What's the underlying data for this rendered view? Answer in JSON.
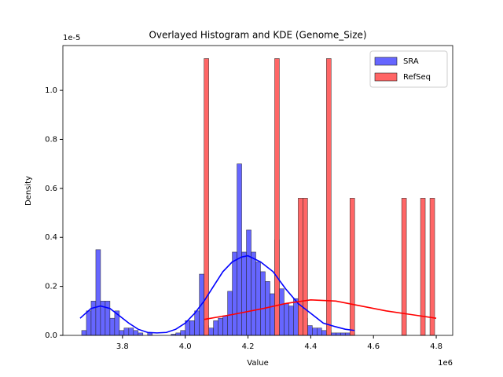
{
  "chart_data": {
    "type": "histogram",
    "title": "Overlayed Histogram and KDE (Genome_Size)",
    "x_label": "Value",
    "y_label": "Density",
    "x_offset_label": "1e6",
    "y_offset_label": "1e-5",
    "xlim": [
      3.61,
      4.8525
    ],
    "ylim": [
      0,
      1.183
    ],
    "xticks": [
      3.8,
      {
        "value": 4,
        "label": "4.0"
      },
      4.2,
      4.4,
      4.6,
      4.8
    ],
    "yticks": [
      {
        "value": 0,
        "label": "0.0"
      },
      0.2,
      0.4,
      0.6,
      0.8,
      {
        "value": 1,
        "label": "1.0"
      }
    ],
    "legend": "upper right",
    "series": [
      {
        "name": "SRA",
        "color": "#6666ff",
        "line_color": "#0000ff",
        "bins": [
          3.67,
          3.685,
          3.7,
          3.715,
          3.73,
          3.745,
          3.76,
          3.775,
          3.79,
          3.805,
          3.82,
          3.835,
          3.85,
          3.865,
          3.88,
          3.895,
          3.91,
          3.925,
          3.94,
          3.955,
          3.97,
          3.985,
          4.0,
          4.015,
          4.03,
          4.045,
          4.06,
          4.075,
          4.09,
          4.105,
          4.12,
          4.135,
          4.15,
          4.165,
          4.18,
          4.195,
          4.21,
          4.225,
          4.24,
          4.255,
          4.27,
          4.285,
          4.3,
          4.315,
          4.33,
          4.345,
          4.36,
          4.375,
          4.39,
          4.405,
          4.42,
          4.435,
          4.45,
          4.465,
          4.48,
          4.495,
          4.51,
          4.525,
          4.54
        ],
        "values": [
          0.02,
          0.1,
          0.14,
          0.35,
          0.14,
          0.14,
          0.07,
          0.1,
          0.02,
          0.03,
          0.03,
          0.02,
          0.01,
          0,
          0.01,
          0,
          0,
          0,
          0,
          0.005,
          0.01,
          0.02,
          0.06,
          0.06,
          0.1,
          0.25,
          0.04,
          0.03,
          0.06,
          0.07,
          0.08,
          0.18,
          0.34,
          0.7,
          0.34,
          0.43,
          0.34,
          0.3,
          0.26,
          0.22,
          0.17,
          0.39,
          0.19,
          0.13,
          0.12,
          0.15,
          0.1,
          0.07,
          0.04,
          0.03,
          0.03,
          0.02,
          0.02,
          0.01,
          0.01,
          0.01,
          0.01,
          0.01
        ],
        "kde": {
          "x": [
            3.665,
            3.7,
            3.73,
            3.76,
            3.79,
            3.82,
            3.85,
            3.88,
            3.91,
            3.94,
            3.97,
            4.0,
            4.03,
            4.06,
            4.09,
            4.12,
            4.15,
            4.18,
            4.2,
            4.24,
            4.28,
            4.32,
            4.36,
            4.4,
            4.44,
            4.48,
            4.51,
            4.54
          ],
          "y": [
            0.07,
            0.11,
            0.12,
            0.11,
            0.08,
            0.05,
            0.025,
            0.012,
            0.01,
            0.012,
            0.025,
            0.05,
            0.09,
            0.14,
            0.2,
            0.26,
            0.3,
            0.32,
            0.325,
            0.3,
            0.26,
            0.19,
            0.13,
            0.09,
            0.05,
            0.035,
            0.025,
            0.02
          ]
        }
      },
      {
        "name": "RefSeq",
        "color": "#ff6666",
        "line_color": "#ff0000",
        "bins": [
          4.06,
          4.075,
          4.09,
          4.105,
          4.12,
          4.135,
          4.15,
          4.165,
          4.18,
          4.195,
          4.21,
          4.225,
          4.24,
          4.255,
          4.27,
          4.285,
          4.3,
          4.315,
          4.33,
          4.345,
          4.36,
          4.375,
          4.39,
          4.405,
          4.42,
          4.435,
          4.45,
          4.465,
          4.48,
          4.495,
          4.51,
          4.525,
          4.54,
          4.555,
          4.57,
          4.585,
          4.6,
          4.615,
          4.63,
          4.645,
          4.66,
          4.675,
          4.69,
          4.705,
          4.72,
          4.735,
          4.75,
          4.765,
          4.78,
          4.795
        ],
        "values": [
          1.13,
          0,
          0,
          0,
          0,
          0,
          0,
          0,
          0,
          0,
          0,
          0,
          0,
          0,
          0,
          1.13,
          0,
          0,
          0,
          0,
          0.56,
          0.56,
          0,
          0,
          0,
          0,
          1.13,
          0,
          0,
          0,
          0,
          0.56,
          0,
          0,
          0,
          0,
          0,
          0,
          0,
          0,
          0,
          0,
          0.56,
          0,
          0,
          0,
          0.56,
          0,
          0.56
        ],
        "kde": {
          "x": [
            4.06,
            4.15,
            4.25,
            4.32,
            4.4,
            4.48,
            4.56,
            4.64,
            4.72,
            4.8
          ],
          "y": [
            0.065,
            0.085,
            0.11,
            0.13,
            0.145,
            0.14,
            0.12,
            0.1,
            0.085,
            0.07
          ]
        }
      }
    ]
  }
}
